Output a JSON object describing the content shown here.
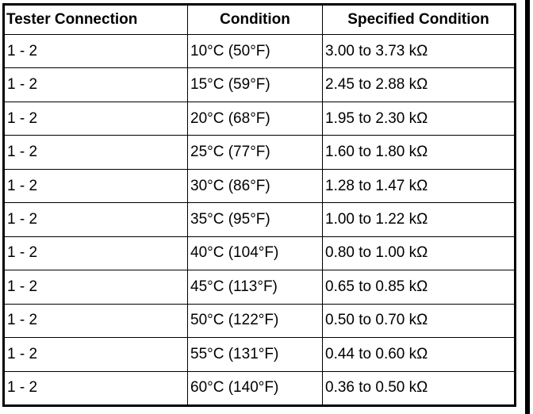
{
  "table": {
    "headers": [
      "Tester Connection",
      "Condition",
      "Specified Condition"
    ],
    "rows": [
      [
        "1 - 2",
        "10°C (50°F)",
        "3.00 to 3.73 kΩ"
      ],
      [
        "1 - 2",
        "15°C (59°F)",
        "2.45 to 2.88 kΩ"
      ],
      [
        "1 - 2",
        "20°C (68°F)",
        "1.95 to 2.30 kΩ"
      ],
      [
        "1 - 2",
        "25°C (77°F)",
        "1.60 to 1.80 kΩ"
      ],
      [
        "1 - 2",
        "30°C (86°F)",
        "1.28 to 1.47 kΩ"
      ],
      [
        "1 - 2",
        "35°C (95°F)",
        "1.00 to 1.22 kΩ"
      ],
      [
        "1 - 2",
        "40°C (104°F)",
        "0.80 to 1.00 kΩ"
      ],
      [
        "1 - 2",
        "45°C (113°F)",
        "0.65 to 0.85 kΩ"
      ],
      [
        "1 - 2",
        "50°C (122°F)",
        "0.50 to 0.70 kΩ"
      ],
      [
        "1 - 2",
        "55°C (131°F)",
        "0.44 to 0.60 kΩ"
      ],
      [
        "1 - 2",
        "60°C (140°F)",
        "0.36 to 0.50 kΩ"
      ]
    ]
  }
}
